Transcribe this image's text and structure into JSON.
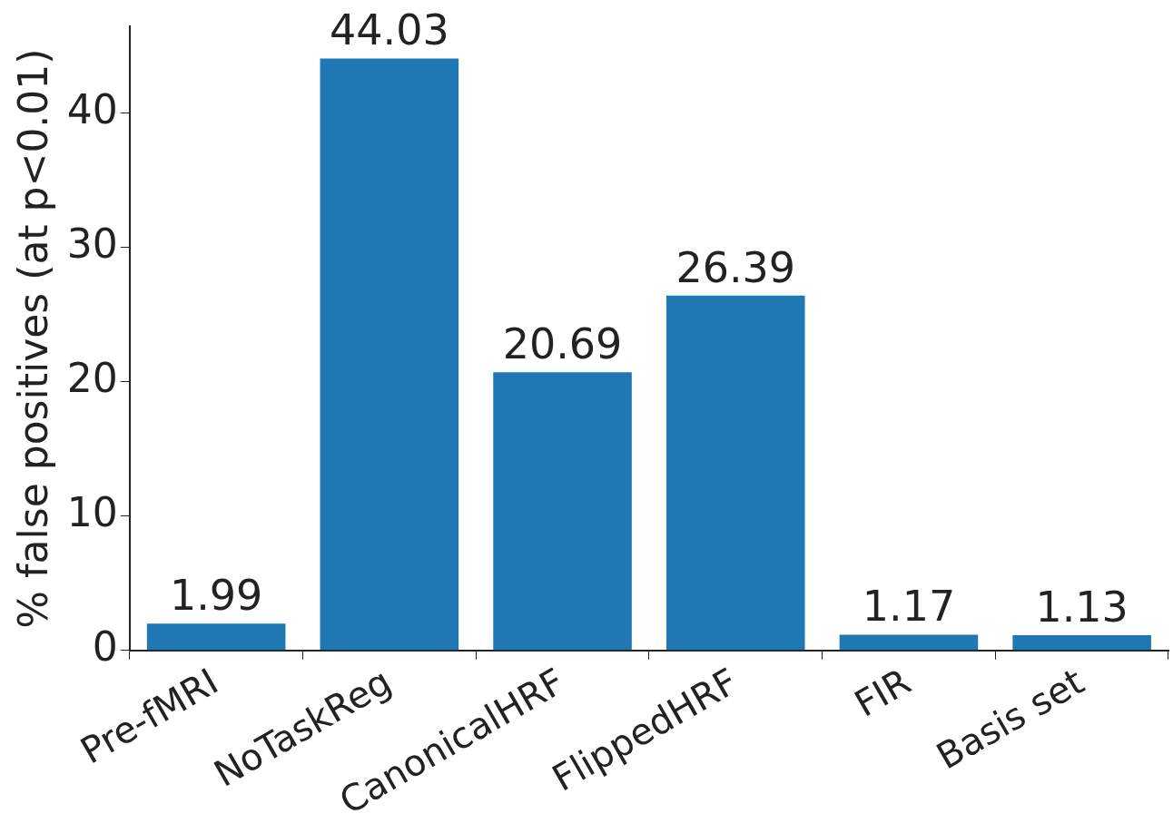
{
  "chart_data": {
    "type": "bar",
    "ylabel": "% false positives (at p<0.01)",
    "categories": [
      "Pre-fMRI",
      "NoTaskReg",
      "CanonicalHRF",
      "FlippedHRF",
      "FIR",
      "Basis set"
    ],
    "values": [
      1.99,
      44.03,
      20.69,
      26.39,
      1.17,
      1.13
    ],
    "color": "#1f77b4",
    "ylim": [
      0,
      46.4
    ],
    "yticks": [
      0,
      10,
      20,
      30,
      40
    ],
    "grid": false,
    "data_labels": true,
    "legend": false
  }
}
